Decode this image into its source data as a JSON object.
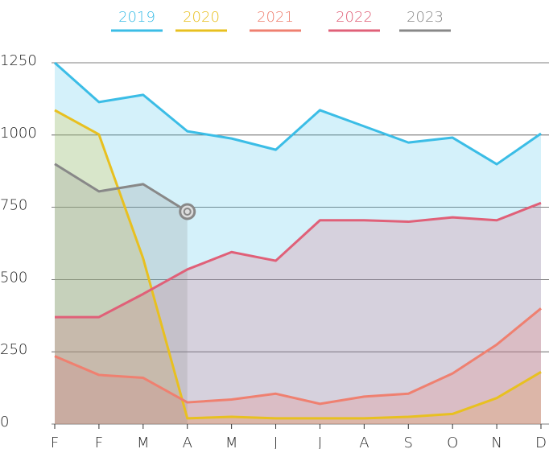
{
  "chart_data": {
    "type": "area",
    "categories": [
      "F",
      "F",
      "M",
      "A",
      "M",
      "J",
      "J",
      "A",
      "S",
      "O",
      "N",
      "D"
    ],
    "series": [
      {
        "name": "2019",
        "color": "#3bbde6",
        "values": [
          1250,
          1114,
          1139,
          1013,
          988,
          949,
          1086,
          1030,
          974,
          991,
          899,
          1005
        ]
      },
      {
        "name": "2020",
        "color": "#e8c020",
        "values": [
          1086,
          1002,
          573,
          20,
          25,
          20,
          20,
          20,
          25,
          35,
          90,
          180
        ]
      },
      {
        "name": "2021",
        "color": "#ef8070",
        "values": [
          235,
          170,
          160,
          75,
          85,
          105,
          70,
          95,
          105,
          175,
          275,
          400
        ]
      },
      {
        "name": "2022",
        "color": "#e06078",
        "values": [
          370,
          370,
          450,
          535,
          595,
          565,
          705,
          705,
          700,
          715,
          705,
          765
        ]
      },
      {
        "name": "2023",
        "color": "#888888",
        "values": [
          900,
          805,
          830,
          735,
          null,
          null,
          null,
          null,
          null,
          null,
          null,
          null
        ]
      }
    ],
    "ylim": [
      0,
      1250
    ],
    "yticks": [
      0,
      250,
      500,
      750,
      1000,
      1250
    ],
    "grid": true,
    "legend": "top"
  }
}
